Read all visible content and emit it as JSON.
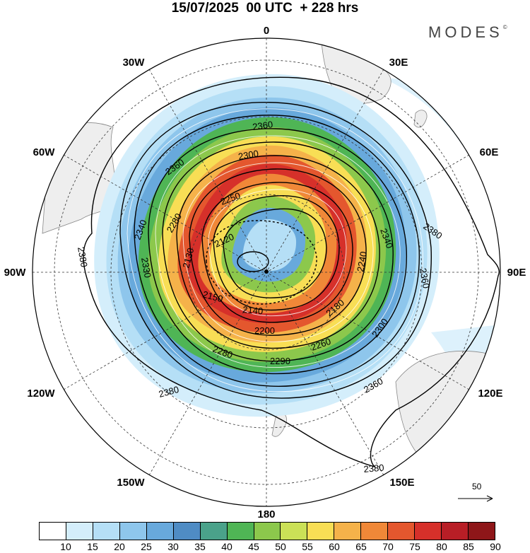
{
  "header": {
    "title": "15/07/2025  00 UTC  + 228 hrs",
    "brand": "MODES",
    "brand_mark": "©"
  },
  "map": {
    "projection": "south-polar-stereographic",
    "longitude_labels": {
      "top": "0",
      "top_left": "30W",
      "top_right": "30E",
      "upper_left": "60W",
      "upper_right": "60E",
      "left": "90W",
      "right": "90E",
      "lower_left": "120W",
      "lower_right": "120E",
      "bottom_left": "150W",
      "bottom_right": "150E",
      "bottom": "180"
    },
    "contour_labels": [
      "2360",
      "2360",
      "2300",
      "2340",
      "2280",
      "2250",
      "2130",
      "2120",
      "2340",
      "2380",
      "2380",
      "2330",
      "2180",
      "2240",
      "2360",
      "2150",
      "2140",
      "2180",
      "2200",
      "2260",
      "2280",
      "2290",
      "2300",
      "2360",
      "2380",
      "2380"
    ],
    "vector_reference": "50",
    "colors": {
      "land": "#eeeeee",
      "ocean": "#ffffff",
      "contour": "#000000",
      "streamline": "#ffffff"
    }
  },
  "colorbar": {
    "ticks": [
      "10",
      "15",
      "20",
      "25",
      "30",
      "35",
      "40",
      "45",
      "50",
      "55",
      "60",
      "65",
      "70",
      "75",
      "80",
      "85",
      "90"
    ],
    "colors": [
      "#ffffff",
      "#d4eefb",
      "#b5dff6",
      "#8ec6ec",
      "#68a9dc",
      "#4f8cc4",
      "#4aa28a",
      "#4fb555",
      "#8cc84c",
      "#cbe157",
      "#f8de55",
      "#f5b24a",
      "#f08838",
      "#e4572e",
      "#d6302a",
      "#b81e26",
      "#8e1619"
    ]
  }
}
